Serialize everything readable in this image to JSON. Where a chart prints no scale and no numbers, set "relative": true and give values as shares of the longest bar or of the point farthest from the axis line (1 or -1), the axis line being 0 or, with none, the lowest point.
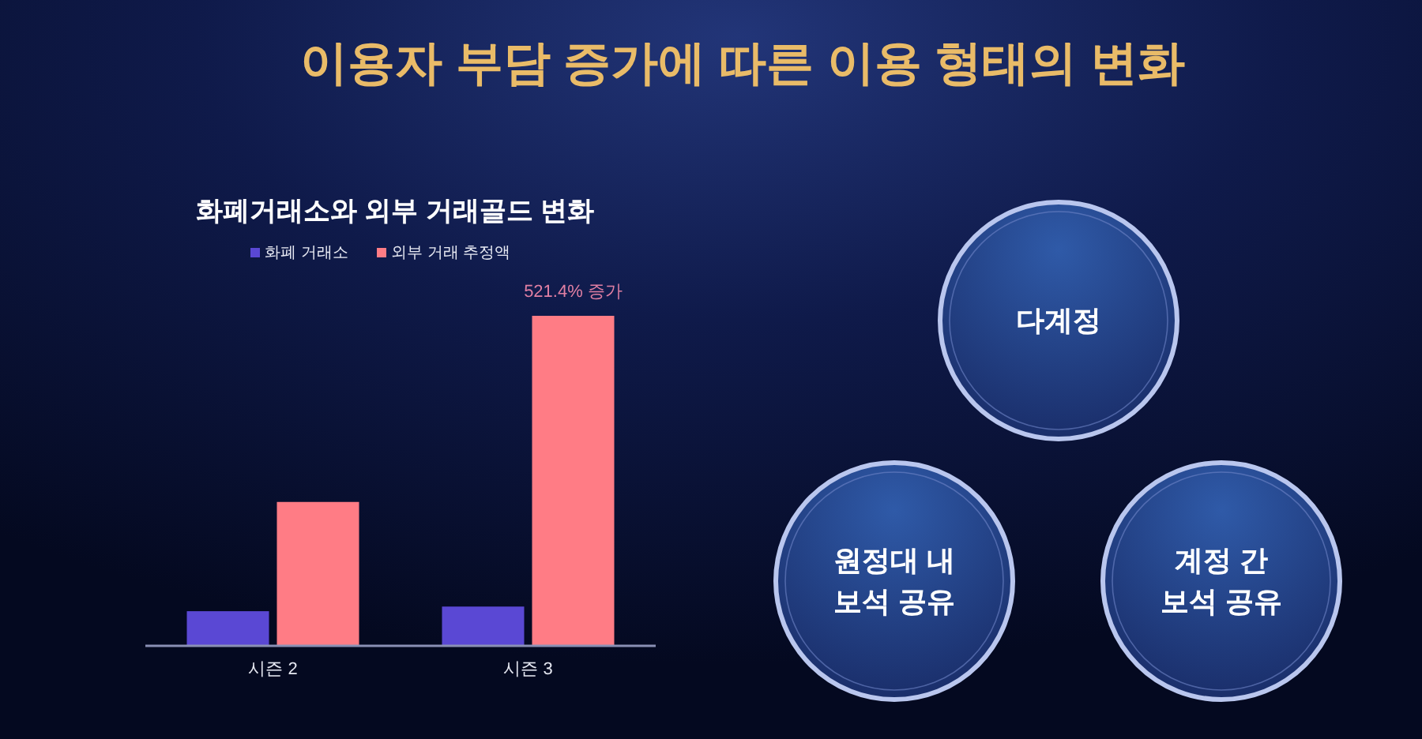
{
  "chart_data": [
    {
      "type": "bar",
      "title": "이용자 부담 증가에 따른 이용 형태의 변화",
      "subtitle": "화폐거래소와 외부 거래골드 변화",
      "categories": [
        "시즌 2",
        "시즌 3"
      ],
      "series": [
        {
          "name": "화폐 거래소",
          "color": "#5a48d4",
          "values": [
            0.105,
            0.119
          ]
        },
        {
          "name": "외부 거래 추정액",
          "color": "#ff7c85",
          "values": [
            0.436,
            1
          ]
        }
      ],
      "relative": true,
      "legend": "top",
      "annotations": [
        {
          "text": "521.4% 증가",
          "x": "시즌 3",
          "y": 1
        }
      ]
    },
    {
      "type": "other",
      "annotations": [
        "다계정",
        "원정대 내\n보석 공유",
        "계정 간\n보석 공유"
      ]
    }
  ]
}
